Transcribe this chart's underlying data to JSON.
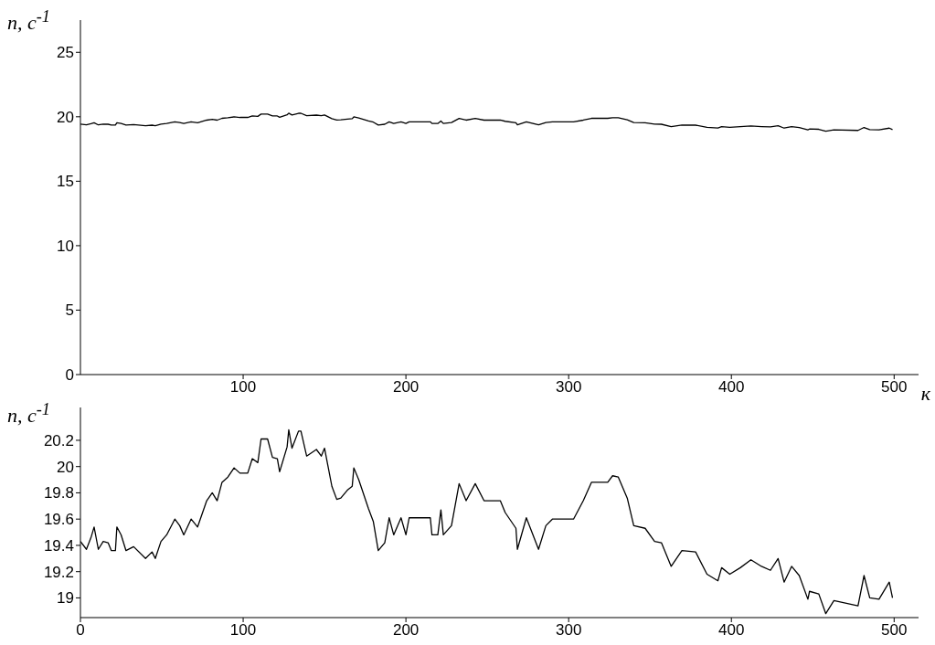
{
  "chart_data": [
    {
      "type": "line",
      "ylabel": "n, с$^{-1}$",
      "xlabel": "к",
      "xlim": [
        0,
        515
      ],
      "ylim": [
        0,
        27.5
      ],
      "xticks": [
        100,
        200,
        300,
        400,
        500
      ],
      "yticks": [
        0,
        5,
        10,
        15,
        20,
        25
      ],
      "grid": false,
      "marker": "none",
      "series": [
        {
          "color": "#000000",
          "x": [
            0,
            3.7,
            6.5,
            8.4,
            11,
            14,
            17,
            19,
            21.5,
            22.4,
            25,
            28,
            32.7,
            40,
            44,
            46,
            49.5,
            53,
            58,
            61,
            63.5,
            68,
            72,
            77.6,
            81,
            84,
            87,
            90.6,
            94.4,
            98,
            102.8,
            105.6,
            109,
            111,
            115,
            118,
            121,
            122.4,
            127,
            128,
            130,
            134,
            135.5,
            139,
            145,
            148,
            150,
            154.5,
            157.5,
            160,
            164,
            167,
            168,
            171,
            177,
            180,
            183,
            187,
            189.7,
            192.5,
            197,
            200,
            202,
            215,
            216,
            219.6,
            221.5,
            223,
            228,
            232.7,
            237,
            242.6,
            248,
            258,
            261,
            267.6,
            268.5,
            274,
            281.5,
            286,
            290,
            303,
            309,
            314,
            318.5,
            324,
            327,
            330.5,
            336,
            340,
            347,
            352.8,
            357,
            363,
            369.6,
            378,
            385,
            391.7,
            394,
            399,
            405.5,
            412,
            418.5,
            424,
            428.7,
            432.4,
            437,
            441.7,
            447,
            448,
            453.7,
            458,
            463,
            477.8,
            481.5,
            485,
            490.7,
            497,
            499
          ],
          "values": [
            19.43,
            19.37,
            19.46,
            19.54,
            19.37,
            19.43,
            19.42,
            19.36,
            19.36,
            19.54,
            19.48,
            19.36,
            19.39,
            19.3,
            19.35,
            19.3,
            19.43,
            19.48,
            19.6,
            19.55,
            19.48,
            19.6,
            19.54,
            19.74,
            19.8,
            19.74,
            19.88,
            19.92,
            19.99,
            19.95,
            19.95,
            20.06,
            20.03,
            20.21,
            20.21,
            20.07,
            20.06,
            19.96,
            20.15,
            20.28,
            20.14,
            20.27,
            20.27,
            20.08,
            20.13,
            20.08,
            20.14,
            19.85,
            19.75,
            19.76,
            19.82,
            19.85,
            19.99,
            19.9,
            19.68,
            19.58,
            19.36,
            19.42,
            19.61,
            19.48,
            19.61,
            19.48,
            19.61,
            19.61,
            19.48,
            19.48,
            19.67,
            19.48,
            19.55,
            19.87,
            19.74,
            19.87,
            19.74,
            19.74,
            19.65,
            19.53,
            19.37,
            19.61,
            19.37,
            19.55,
            19.6,
            19.6,
            19.74,
            19.88,
            19.88,
            19.88,
            19.93,
            19.92,
            19.76,
            19.55,
            19.53,
            19.43,
            19.42,
            19.24,
            19.36,
            19.35,
            19.18,
            19.13,
            19.23,
            19.18,
            19.23,
            19.29,
            19.24,
            19.21,
            19.3,
            19.12,
            19.24,
            19.17,
            18.99,
            19.05,
            19.03,
            18.88,
            18.98,
            18.94,
            19.17,
            19.0,
            18.99,
            19.12,
            19.0
          ]
        }
      ]
    },
    {
      "type": "line",
      "ylabel": "n, с$^{-1}$",
      "xlim": [
        0,
        515
      ],
      "ylim": [
        18.85,
        20.45
      ],
      "xticks": [
        0,
        100,
        200,
        300,
        400,
        500
      ],
      "yticks": [
        19,
        19.2,
        19.4,
        19.6,
        19.8,
        20,
        20.2
      ],
      "grid": false,
      "marker": "none",
      "series": [
        {
          "color": "#000000",
          "x": [
            0,
            3.7,
            6.5,
            8.4,
            11,
            14,
            17,
            19,
            21.5,
            22.4,
            25,
            28,
            32.7,
            40,
            44,
            46,
            49.5,
            53,
            58,
            61,
            63.5,
            68,
            72,
            77.6,
            81,
            84,
            87,
            90.6,
            94.4,
            98,
            102.8,
            105.6,
            109,
            111,
            115,
            118,
            121,
            122.4,
            127,
            128,
            130,
            134,
            135.5,
            139,
            145,
            148,
            150,
            154.5,
            157.5,
            160,
            164,
            167,
            168,
            171,
            177,
            180,
            183,
            187,
            189.7,
            192.5,
            197,
            200,
            202,
            215,
            216,
            219.6,
            221.5,
            223,
            228,
            232.7,
            237,
            242.6,
            248,
            258,
            261,
            267.6,
            268.5,
            274,
            281.5,
            286,
            290,
            303,
            309,
            314,
            318.5,
            324,
            327,
            330.5,
            336,
            340,
            347,
            352.8,
            357,
            363,
            369.6,
            378,
            385,
            391.7,
            394,
            399,
            405.5,
            412,
            418.5,
            424,
            428.7,
            432.4,
            437,
            441.7,
            447,
            448,
            453.7,
            458,
            463,
            477.8,
            481.5,
            485,
            490.7,
            497,
            499
          ],
          "values": [
            19.43,
            19.37,
            19.46,
            19.54,
            19.37,
            19.43,
            19.42,
            19.36,
            19.36,
            19.54,
            19.48,
            19.36,
            19.39,
            19.3,
            19.35,
            19.3,
            19.43,
            19.48,
            19.6,
            19.55,
            19.48,
            19.6,
            19.54,
            19.74,
            19.8,
            19.74,
            19.88,
            19.92,
            19.99,
            19.95,
            19.95,
            20.06,
            20.03,
            20.21,
            20.21,
            20.07,
            20.06,
            19.96,
            20.15,
            20.28,
            20.14,
            20.27,
            20.27,
            20.08,
            20.13,
            20.08,
            20.14,
            19.85,
            19.75,
            19.76,
            19.82,
            19.85,
            19.99,
            19.9,
            19.68,
            19.58,
            19.36,
            19.42,
            19.61,
            19.48,
            19.61,
            19.48,
            19.61,
            19.61,
            19.48,
            19.48,
            19.67,
            19.48,
            19.55,
            19.87,
            19.74,
            19.87,
            19.74,
            19.74,
            19.65,
            19.53,
            19.37,
            19.61,
            19.37,
            19.55,
            19.6,
            19.6,
            19.74,
            19.88,
            19.88,
            19.88,
            19.93,
            19.92,
            19.76,
            19.55,
            19.53,
            19.43,
            19.42,
            19.24,
            19.36,
            19.35,
            19.18,
            19.13,
            19.23,
            19.18,
            19.23,
            19.29,
            19.24,
            19.21,
            19.3,
            19.12,
            19.24,
            19.17,
            18.99,
            19.05,
            19.03,
            18.88,
            18.98,
            18.94,
            19.17,
            19.0,
            18.99,
            19.12,
            19.0
          ]
        }
      ]
    }
  ]
}
